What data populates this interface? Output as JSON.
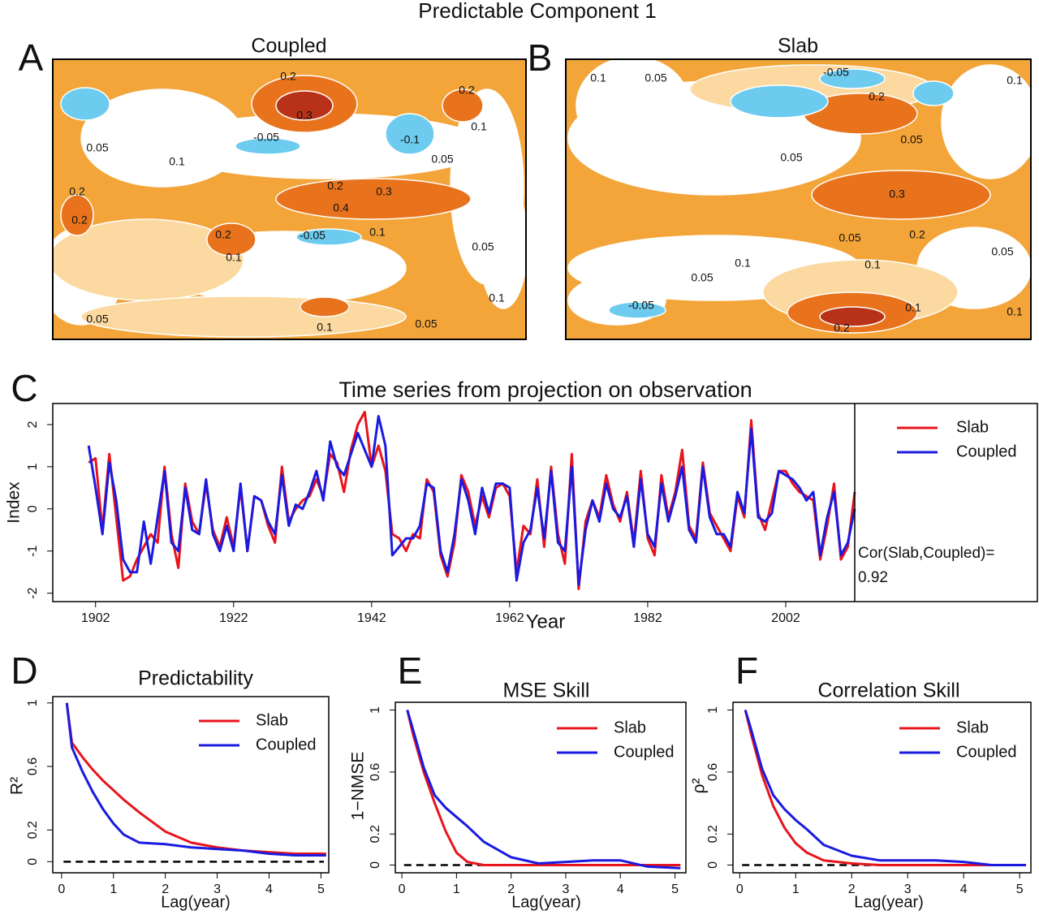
{
  "suptitle": "Predictable Component 1",
  "chart_data": [
    {
      "type": "map",
      "panel": "A",
      "title": "Coupled",
      "contour_labels": [
        "0.2",
        "0.3",
        "0.2",
        "0.1",
        "-0.05",
        "-0.1",
        "0.05",
        "0.1",
        "0.05",
        "0.2",
        "0.2",
        "0.2",
        "0.3",
        "0.4",
        "0.2",
        "0.1",
        "-0.05",
        "0.1",
        "0.05",
        "0.05",
        "0.1",
        "0.05",
        "0.1"
      ]
    },
    {
      "type": "map",
      "panel": "B",
      "title": "Slab",
      "contour_labels": [
        "0.1",
        "0.05",
        "-0.05",
        "0.1",
        "0.2",
        "0.05",
        "0.05",
        "0.3",
        "0.05",
        "0.2",
        "0.05",
        "0.1",
        "0.1",
        "0.05",
        "-0.05",
        "0.1",
        "0.1",
        "0.2"
      ]
    },
    {
      "type": "line",
      "panel": "C",
      "title": "Time series from projection on observation",
      "xlabel": "Year",
      "ylabel": "Index",
      "x": [
        1901,
        1902,
        1903,
        1904,
        1905,
        1906,
        1907,
        1908,
        1909,
        1910,
        1911,
        1912,
        1913,
        1914,
        1915,
        1916,
        1917,
        1918,
        1919,
        1920,
        1921,
        1922,
        1923,
        1924,
        1925,
        1926,
        1927,
        1928,
        1929,
        1930,
        1931,
        1932,
        1933,
        1934,
        1935,
        1936,
        1937,
        1938,
        1939,
        1940,
        1941,
        1942,
        1943,
        1944,
        1945,
        1946,
        1947,
        1948,
        1949,
        1950,
        1951,
        1952,
        1953,
        1954,
        1955,
        1956,
        1957,
        1958,
        1959,
        1960,
        1961,
        1962,
        1963,
        1964,
        1965,
        1966,
        1967,
        1968,
        1969,
        1970,
        1971,
        1972,
        1973,
        1974,
        1975,
        1976,
        1977,
        1978,
        1979,
        1980,
        1981,
        1982,
        1983,
        1984,
        1985,
        1986,
        1987,
        1988,
        1989,
        1990,
        1991,
        1992,
        1993,
        1994,
        1995,
        1996,
        1997,
        1998,
        1999,
        2000,
        2001,
        2002,
        2003,
        2004,
        2005,
        2006,
        2007,
        2008,
        2009,
        2010,
        2011,
        2012
      ],
      "series": [
        {
          "name": "Slab",
          "color": "#e8141c",
          "values": [
            1.1,
            1.2,
            -0.5,
            1.3,
            -0.2,
            -1.7,
            -1.6,
            -1.2,
            -0.9,
            -0.6,
            -0.8,
            1.0,
            -0.6,
            -1.4,
            0.6,
            -0.3,
            -0.6,
            0.6,
            -0.5,
            -0.9,
            -0.2,
            -0.9,
            0.5,
            -1.0,
            0.3,
            0.2,
            -0.4,
            -0.8,
            1.0,
            -0.3,
            0.0,
            0.2,
            0.3,
            0.7,
            0.3,
            1.3,
            1.1,
            0.4,
            1.4,
            2.0,
            2.3,
            1.0,
            1.5,
            0.9,
            -0.6,
            -0.7,
            -1.0,
            -0.6,
            -0.7,
            0.7,
            0.4,
            -1.1,
            -1.6,
            -0.8,
            0.8,
            0.4,
            -0.4,
            0.3,
            -0.2,
            0.5,
            0.6,
            0.3,
            -1.5,
            -0.4,
            -0.6,
            0.7,
            -0.9,
            1.0,
            -0.6,
            -1.3,
            1.3,
            -1.9,
            -0.3,
            0.2,
            -0.2,
            0.8,
            0.1,
            -0.3,
            0.4,
            -0.8,
            0.9,
            -0.7,
            -1.1,
            0.8,
            -0.2,
            0.4,
            1.4,
            -0.4,
            -0.7,
            1.1,
            -0.1,
            -0.4,
            -0.7,
            -1.0,
            0.3,
            -0.2,
            2.1,
            -0.1,
            -0.5,
            0.2,
            0.9,
            0.9,
            0.6,
            0.4,
            0.3,
            0.2,
            -1.2,
            -0.4,
            0.6,
            -1.2,
            -0.9,
            0.4
          ]
        },
        {
          "name": "Coupled",
          "color": "#1a1ae0",
          "values": [
            1.5,
            0.5,
            -0.6,
            1.1,
            0.2,
            -1.2,
            -1.5,
            -1.5,
            -0.3,
            -1.3,
            -0.2,
            0.9,
            -0.8,
            -1.0,
            0.5,
            -0.5,
            -0.6,
            0.7,
            -0.6,
            -1.0,
            -0.4,
            -1.0,
            0.6,
            -1.0,
            0.3,
            0.2,
            -0.3,
            -0.6,
            0.8,
            -0.4,
            0.1,
            0.0,
            0.4,
            0.9,
            0.2,
            1.6,
            1.0,
            0.8,
            1.3,
            1.8,
            1.4,
            1.0,
            2.2,
            1.5,
            -1.1,
            -0.9,
            -0.7,
            -0.7,
            -0.4,
            0.6,
            0.5,
            -1.0,
            -1.5,
            -0.6,
            0.7,
            0.2,
            -0.6,
            0.5,
            -0.1,
            0.6,
            0.6,
            0.5,
            -1.7,
            -0.8,
            -0.5,
            0.5,
            -0.7,
            0.9,
            -0.8,
            -1.0,
            1.0,
            -1.8,
            -0.5,
            0.2,
            -0.3,
            0.6,
            0.0,
            -0.2,
            0.3,
            -0.9,
            0.7,
            -0.6,
            -0.9,
            0.6,
            -0.3,
            0.3,
            1.0,
            -0.5,
            -0.8,
            1.0,
            -0.2,
            -0.6,
            -0.6,
            -0.9,
            0.4,
            -0.1,
            1.9,
            -0.2,
            -0.3,
            -0.1,
            0.9,
            0.8,
            0.7,
            0.5,
            0.2,
            0.4,
            -1.1,
            -0.2,
            0.4,
            -1.1,
            -0.8,
            0.0
          ]
        }
      ],
      "xlim": [
        1895.8,
        2012
      ],
      "ylim": [
        -2.2,
        2.5
      ],
      "xticks": [
        1902,
        1922,
        1942,
        1962,
        1982,
        2002
      ],
      "yticks": [
        -2,
        -1,
        0,
        1,
        2
      ],
      "annotations": [
        "Cor(Slab,Coupled)=",
        "0.92"
      ]
    },
    {
      "type": "line",
      "panel": "D",
      "title": "Predictability",
      "xlabel": "Lag(year)",
      "ylabel": "R²",
      "x": [
        0.1,
        0.2,
        0.4,
        0.6,
        0.8,
        1,
        1.2,
        1.5,
        2,
        2.5,
        3,
        3.5,
        4,
        4.5,
        5.1
      ],
      "series": [
        {
          "name": "Slab",
          "color": "#e8141c",
          "values": [
            1,
            0.75,
            0.66,
            0.58,
            0.51,
            0.45,
            0.39,
            0.31,
            0.19,
            0.12,
            0.09,
            0.07,
            0.06,
            0.05,
            0.05
          ]
        },
        {
          "name": "Coupled",
          "color": "#1a1ae0",
          "values": [
            1,
            0.72,
            0.57,
            0.44,
            0.33,
            0.24,
            0.17,
            0.12,
            0.11,
            0.09,
            0.08,
            0.07,
            0.05,
            0.04,
            0.04
          ]
        }
      ],
      "xlim": [
        -0.17,
        5.15
      ],
      "ylim": [
        -0.07,
        1.04
      ],
      "xticks": [
        0,
        1,
        2,
        3,
        4,
        5
      ],
      "yticks": [
        0,
        0.2,
        0.6,
        1
      ],
      "hline": 0
    },
    {
      "type": "line",
      "panel": "E",
      "title": "MSE Skill",
      "xlabel": "Lag(year)",
      "ylabel": "1−NMSE",
      "x": [
        0.1,
        0.2,
        0.4,
        0.6,
        0.8,
        1,
        1.2,
        1.5,
        2,
        2.5,
        3,
        3.5,
        4,
        4.5,
        5.1
      ],
      "series": [
        {
          "name": "Slab",
          "color": "#e8141c",
          "values": [
            1,
            0.85,
            0.6,
            0.4,
            0.22,
            0.08,
            0.02,
            0,
            0,
            0,
            0,
            0,
            0,
            0,
            0
          ]
        },
        {
          "name": "Coupled",
          "color": "#1a1ae0",
          "values": [
            1,
            0.88,
            0.63,
            0.45,
            0.37,
            0.31,
            0.25,
            0.15,
            0.05,
            0.01,
            0.02,
            0.03,
            0.03,
            -0.01,
            -0.02
          ]
        }
      ],
      "xlim": [
        -0.12,
        5.2
      ],
      "ylim": [
        -0.05,
        1.05
      ],
      "xticks": [
        0,
        1,
        2,
        3,
        4,
        5
      ],
      "yticks": [
        0,
        0.2,
        0.6,
        1
      ],
      "hline": 0
    },
    {
      "type": "line",
      "panel": "F",
      "title": "Correlation Skill",
      "xlabel": "Lag(year)",
      "ylabel": "ρ²",
      "x": [
        0.1,
        0.2,
        0.4,
        0.6,
        0.8,
        1,
        1.2,
        1.5,
        2,
        2.5,
        3,
        3.5,
        4,
        4.5,
        5.1
      ],
      "series": [
        {
          "name": "Slab",
          "color": "#e8141c",
          "values": [
            1,
            0.85,
            0.58,
            0.38,
            0.24,
            0.14,
            0.08,
            0.03,
            0.01,
            0,
            0,
            0,
            0,
            0,
            0
          ]
        },
        {
          "name": "Coupled",
          "color": "#1a1ae0",
          "values": [
            1,
            0.88,
            0.62,
            0.45,
            0.36,
            0.29,
            0.23,
            0.13,
            0.06,
            0.03,
            0.03,
            0.03,
            0.02,
            0,
            0
          ]
        }
      ],
      "xlim": [
        -0.12,
        5.2
      ],
      "ylim": [
        -0.05,
        1.05
      ],
      "xticks": [
        0,
        1,
        2,
        3,
        4,
        5
      ],
      "yticks": [
        0,
        0.2,
        0.6,
        1
      ],
      "hline": 0
    }
  ]
}
